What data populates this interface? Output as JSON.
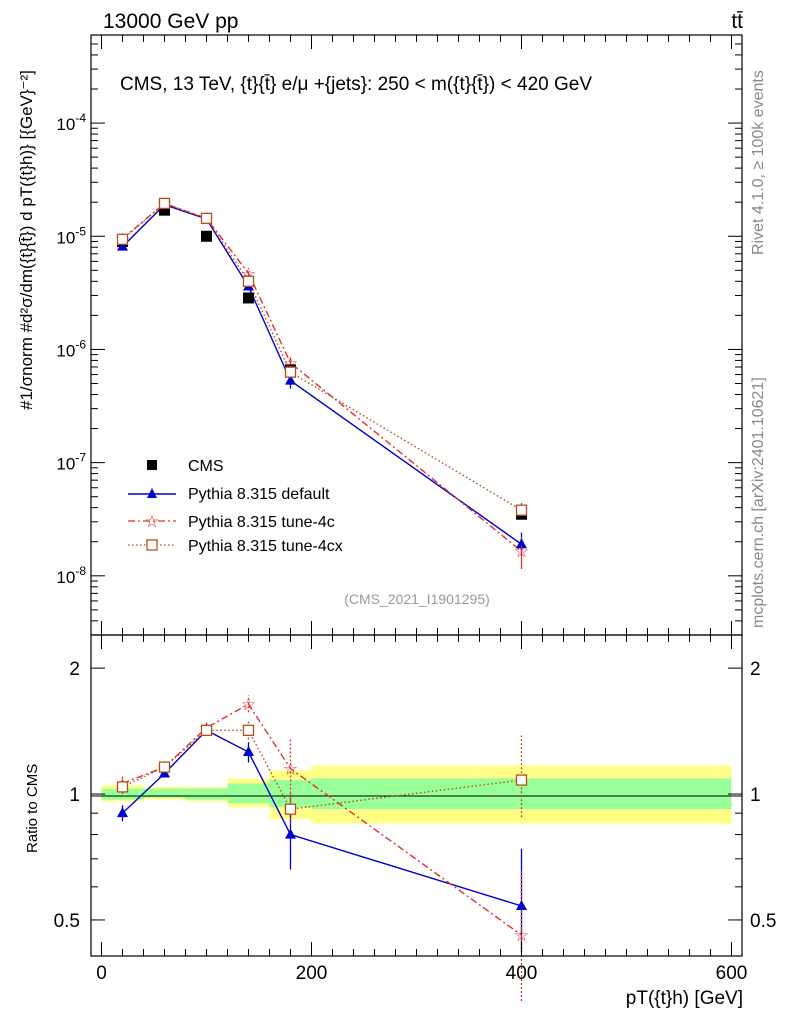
{
  "header": {
    "energy_label": "13000 GeV pp",
    "process_label": "tt̄"
  },
  "side_labels": {
    "rivet": "Rivet 4.1.0, ≥ 100k events",
    "mcplots": "mcplots.cern.ch [arXiv:2401.10621]"
  },
  "colors": {
    "cms": "#000000",
    "default": "#0000cc",
    "tune4c": "#e03030",
    "tune4cx": "#b05020",
    "band_inner": "#99ff99",
    "band_outer": "#ffff88"
  },
  "chart_data": [
    {
      "type": "scatter",
      "panel": "main",
      "title": "CMS, 13 TeV, {t}{t̄} e/μ +{jets}: 250 < m({t}{t̄}) < 420 GeV",
      "ylabel": "#1/σnorm #d²σ/dm({t}{t̄}) d pT({t}h)} [{GeV}⁻²]",
      "y_scale": "log",
      "ylim": [
        3e-09,
        0.0006
      ],
      "xlim": [
        -10,
        610
      ],
      "y_ticks": [
        "10^{-8}",
        "10^{-7}",
        "10^{-6}",
        "10^{-5}",
        "10^{-4}"
      ],
      "watermark": "(CMS_2021_I1901295)",
      "legend": [
        "CMS",
        "Pythia 8.315 default",
        "Pythia 8.315 tune-4c",
        "Pythia 8.315 tune-4cx"
      ],
      "x": [
        20,
        60,
        100,
        140,
        180,
        400
      ],
      "series": [
        {
          "name": "CMS",
          "values": [
            9e-06,
            1.7e-05,
            1e-05,
            2.85e-06,
            6.6e-07,
            3.5e-08
          ]
        },
        {
          "name": "Pythia 8.315 default",
          "values": [
            8.1e-06,
            1.9e-05,
            1.42e-05,
            3.6e-06,
            5.3e-07,
            1.9e-08
          ],
          "err_low": [
            7.6e-06,
            1.85e-05,
            1.38e-05,
            3.4e-06,
            4.5e-07,
            1.5e-08
          ],
          "err_high": [
            8.6e-06,
            1.95e-05,
            1.46e-05,
            3.8e-06,
            6.1e-07,
            2.4e-08
          ]
        },
        {
          "name": "Pythia 8.315 tune-4c",
          "values": [
            9.5e-06,
            1.95e-05,
            1.44e-05,
            4.7e-06,
            7.6e-07,
            1.65e-08
          ],
          "err_low": [
            9.1e-06,
            1.9e-05,
            1.4e-05,
            4.5e-06,
            6.7e-07,
            1.15e-08
          ],
          "err_high": [
            9.9e-06,
            2e-05,
            1.48e-05,
            4.9e-06,
            8.5e-07,
            2.2e-08
          ]
        },
        {
          "name": "Pythia 8.315 tune-4cx",
          "values": [
            9.4e-06,
            1.95e-05,
            1.44e-05,
            4e-06,
            6.3e-07,
            3.8e-08
          ],
          "err_low": [
            9e-06,
            1.9e-05,
            1.4e-05,
            3.8e-06,
            5.8e-07,
            3.2e-08
          ],
          "err_high": [
            9.8e-06,
            2e-05,
            1.48e-05,
            4.2e-06,
            6.8e-07,
            4.4e-08
          ]
        }
      ]
    },
    {
      "type": "scatter",
      "panel": "ratio",
      "ylabel": "Ratio to CMS",
      "xlabel": "pT({t}h) [GeV]",
      "y_scale": "log",
      "ylim": [
        0.41,
        2.4
      ],
      "xlim": [
        -10,
        610
      ],
      "x_ticks": [
        0,
        200,
        400,
        600
      ],
      "y_ticks": [
        0.5,
        1,
        2
      ],
      "bins": [
        0,
        40,
        80,
        120,
        160,
        200,
        600
      ],
      "band_inner": [
        [
          0.97,
          1.03
        ],
        [
          0.98,
          1.03
        ],
        [
          0.97,
          1.03
        ],
        [
          0.95,
          1.06
        ],
        [
          0.93,
          1.08
        ],
        [
          0.92,
          1.09
        ]
      ],
      "band_outer": [
        [
          0.96,
          1.05
        ],
        [
          0.97,
          1.04
        ],
        [
          0.96,
          1.04
        ],
        [
          0.93,
          1.09
        ],
        [
          0.87,
          1.14
        ],
        [
          0.85,
          1.17
        ]
      ],
      "x": [
        20,
        60,
        100,
        140,
        180,
        400
      ],
      "series": [
        {
          "name": "Pythia 8.315 default",
          "values": [
            0.9,
            1.12,
            1.42,
            1.26,
            0.8,
            0.54
          ],
          "err_low": [
            0.86,
            1.1,
            1.38,
            1.19,
            0.66,
            0.42
          ],
          "err_high": [
            0.94,
            1.14,
            1.46,
            1.33,
            0.94,
            0.74
          ]
        },
        {
          "name": "Pythia 8.315 tune-4c",
          "values": [
            1.06,
            1.16,
            1.44,
            1.64,
            1.15,
            0.46
          ],
          "err_low": [
            1.02,
            1.14,
            1.4,
            1.57,
            0.96,
            0.32
          ],
          "err_high": [
            1.1,
            1.18,
            1.48,
            1.72,
            1.35,
            0.66
          ]
        },
        {
          "name": "Pythia 8.315 tune-4cx",
          "values": [
            1.04,
            1.16,
            1.42,
            1.42,
            0.92,
            1.08
          ],
          "err_low": [
            1.0,
            1.14,
            1.38,
            1.35,
            0.85,
            0.88
          ],
          "err_high": [
            1.08,
            1.18,
            1.46,
            1.49,
            1.0,
            1.38
          ]
        }
      ]
    }
  ]
}
